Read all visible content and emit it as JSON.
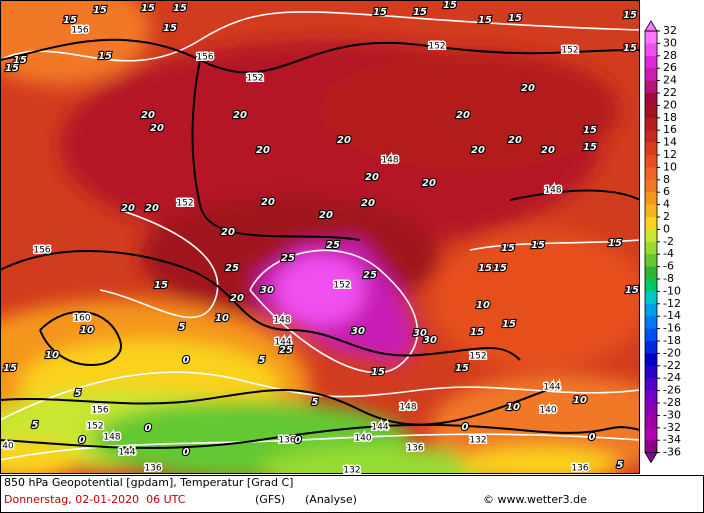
{
  "header": {
    "title": "850 hPa Geopotential [gpdam], Temperatur [Grad C]",
    "date": "Donnerstag, 02-01-2020  06 UTC",
    "model": "(GFS)",
    "run": "(Analyse)",
    "source": "© www.wetter3.de"
  },
  "legend": {
    "ticks": [
      32,
      30,
      28,
      26,
      24,
      22,
      20,
      18,
      16,
      14,
      12,
      10,
      8,
      6,
      4,
      2,
      0,
      -2,
      -4,
      -6,
      -8,
      -10,
      -12,
      -14,
      -16,
      -18,
      -20,
      -22,
      -24,
      -26,
      -28,
      -30,
      -32,
      -34,
      -36
    ],
    "colors": [
      "#ff78ff",
      "#f050f0",
      "#dc28dc",
      "#c81eb4",
      "#b41478",
      "#a00a3c",
      "#a0141e",
      "#b41e1e",
      "#c8281e",
      "#dc3c1e",
      "#e6501e",
      "#f06428",
      "#f07828",
      "#f5961e",
      "#f5b41e",
      "#fad21e",
      "#c8e632",
      "#96dc32",
      "#64c832",
      "#32b432",
      "#00c864",
      "#00c8c8",
      "#00a0e6",
      "#0078f0",
      "#0050f0",
      "#0028dc",
      "#0000c8",
      "#2800c8",
      "#5000c8",
      "#7800c8",
      "#8c00b4",
      "#a000a0",
      "#b400b4",
      "#8c008c"
    ]
  },
  "map": {
    "geopotential_labels": [
      156,
      156,
      152,
      152,
      152,
      152,
      148,
      148,
      156,
      152,
      148,
      144,
      160,
      152,
      156,
      152,
      148,
      144,
      148,
      140,
      144,
      144,
      136,
      140,
      136,
      132,
      136,
      132,
      136,
      40
    ],
    "temperature_labels": [
      15,
      15,
      15,
      15,
      15,
      15,
      15,
      15,
      15,
      15,
      15,
      15,
      15,
      15,
      15,
      20,
      20,
      20,
      20,
      20,
      20,
      20,
      20,
      20,
      15,
      15,
      20,
      20,
      20,
      20,
      20,
      20,
      20,
      20,
      20,
      25,
      25,
      25,
      25,
      30,
      20,
      15,
      10,
      5,
      10,
      10,
      15,
      5,
      30,
      30,
      30,
      25,
      15,
      15,
      15,
      10,
      15,
      15,
      15,
      15,
      15,
      15,
      15,
      10,
      10,
      5,
      0,
      5,
      0,
      0,
      5,
      0,
      0,
      0,
      5,
      0
    ]
  }
}
